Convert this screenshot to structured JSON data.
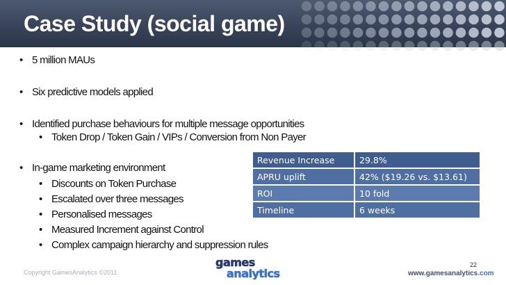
{
  "slide": {
    "title": "Case Study (social game)",
    "bullets": [
      "5 million MAUs",
      "Six predictive models applied",
      "Identified purchase behaviours for multiple message opportunities",
      "Token Drop / Token Gain / VIPs / Conversion from Non Payer",
      "In-game marketing environment",
      "Discounts on Token Purchase",
      "Escalated over three messages",
      "Personalised messages",
      "Measured Increment against Control",
      "Complex campaign hierarchy and suppression rules"
    ],
    "metrics_table": [
      {
        "label": "Revenue Increase",
        "value": "29.8%"
      },
      {
        "label": "APRU uplift",
        "value": "42%  ($19.26 vs. $13.61)"
      },
      {
        "label": "ROI",
        "value": "10 fold"
      },
      {
        "label": "Timeline",
        "value": "6 weeks"
      }
    ]
  },
  "footer": {
    "copyright": "Copyright GamesAnalytics ©2011",
    "logo_line1": "games",
    "logo_line2": "analytics",
    "page_number": "22",
    "website_main": "www.gamesanalytics",
    "website_tld": ".com"
  },
  "colors": {
    "header_bg": "#38435a",
    "table_head": "#3f5d8e",
    "table_row_a": "#4f6fa3",
    "table_row_b": "#5c7cb0",
    "logo_navy": "#2b3a66",
    "logo_blue": "#3b72c9"
  }
}
